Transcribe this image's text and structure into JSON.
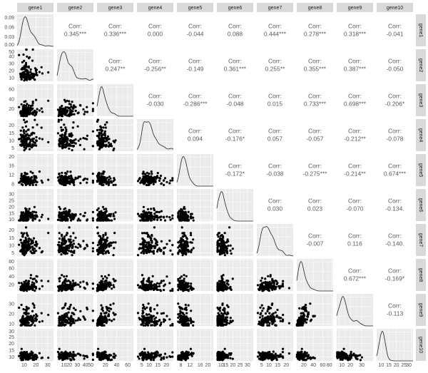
{
  "chart_data": {
    "type": "scatter-matrix",
    "variables": [
      "gene1",
      "gene2",
      "gene3",
      "gene4",
      "gene5",
      "gene6",
      "gene7",
      "gene8",
      "gene9",
      "gene10"
    ],
    "ranges": {
      "gene1": [
        4,
        35
      ],
      "gene2": [
        5,
        50
      ],
      "gene3": [
        5,
        70
      ],
      "gene4": [
        3,
        24
      ],
      "gene5": [
        7,
        21
      ],
      "gene6": [
        9,
        34
      ],
      "gene7": [
        3,
        24
      ],
      "gene8": [
        5,
        82
      ],
      "gene9": [
        8,
        40
      ],
      "gene10": [
        7,
        31
      ]
    },
    "ticks": {
      "gene1": [
        10,
        20,
        30
      ],
      "gene2": [
        10,
        20,
        30,
        40,
        50
      ],
      "gene3": [
        20,
        40,
        60
      ],
      "gene4": [
        5,
        10,
        15,
        20
      ],
      "gene5": [
        8,
        12,
        16,
        20
      ],
      "gene6": [
        10,
        15,
        20,
        25,
        30
      ],
      "gene7": [
        5,
        10,
        15,
        20
      ],
      "gene8": [
        20,
        40,
        60,
        80
      ],
      "gene9": [
        10,
        20,
        30
      ],
      "gene10": [
        10,
        15,
        20,
        25,
        30
      ]
    },
    "density_yticks": [
      "0.00",
      "0.03",
      "0.06",
      "0.09"
    ],
    "density_ylim": [
      0,
      0.1
    ],
    "corr_label": "Corr:",
    "correlations": [
      [
        "0.345***",
        "0.336***",
        "0.000",
        "-0.044",
        "0.088",
        "0.444***",
        "0.278***",
        "0.318***",
        "-0.041"
      ],
      [
        "0.247**",
        "-0.256**",
        "-0.149",
        "0.361***",
        "0.255**",
        "0.355***",
        "0.387***",
        "-0.050"
      ],
      [
        "-0.030",
        "-0.286***",
        "-0.048",
        "0.015",
        "0.733***",
        "0.698***",
        "-0.206*"
      ],
      [
        "0.094",
        "-0.176*",
        "0.057",
        "-0.057",
        "-0.212**",
        "-0.078"
      ],
      [
        "-0.172*",
        "-0.038",
        "-0.275***",
        "-0.214**",
        "0.674***"
      ],
      [
        "0.030",
        "0.023",
        "-0.070",
        "-0.134."
      ],
      [
        "-0.007",
        "0.116",
        "-0.140."
      ],
      [
        "0.672***",
        "-0.169*"
      ],
      [
        "-0.113"
      ]
    ],
    "diagonal": "density",
    "lower": "scatter",
    "upper": "correlation",
    "grid": true,
    "colors": {
      "panel": "#ebebeb",
      "grid": "#ffffff",
      "strip": "#d9d9d9",
      "points": "#000000",
      "corr_text": "#595959"
    }
  }
}
